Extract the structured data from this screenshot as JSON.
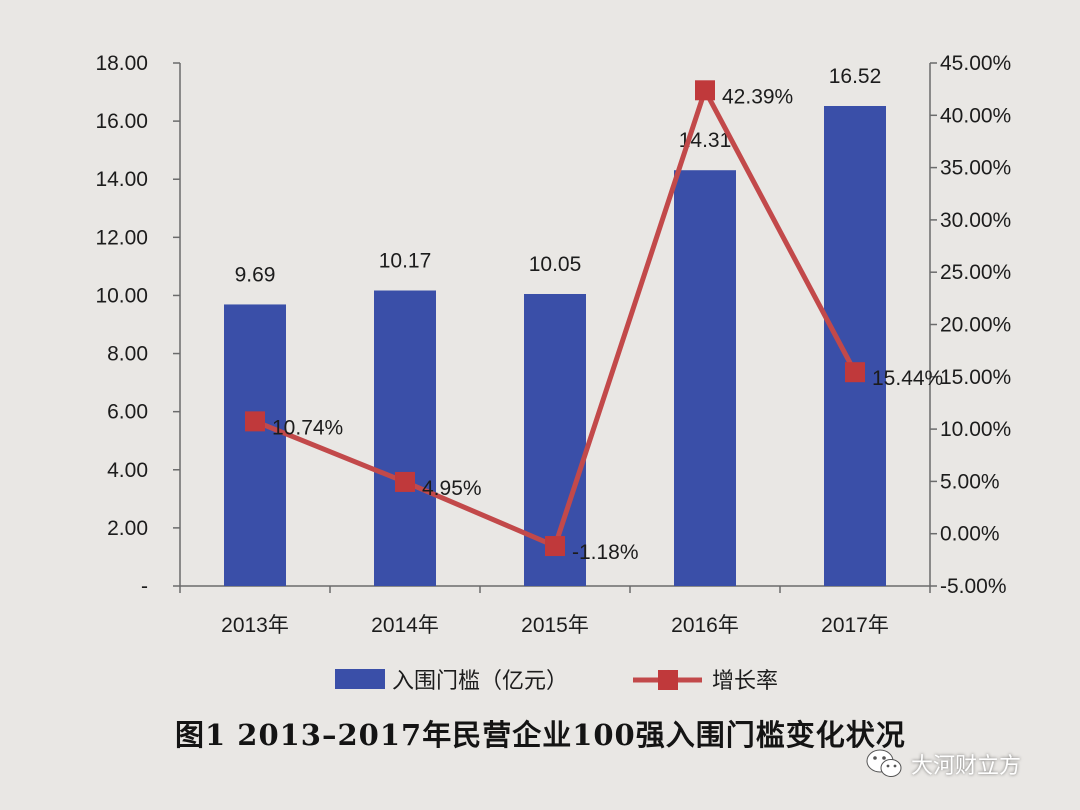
{
  "chart_data": {
    "type": "bar",
    "categories": [
      "2013年",
      "2014年",
      "2015年",
      "2016年",
      "2017年"
    ],
    "series": [
      {
        "name": "入围门槛（亿元）",
        "axis": "left",
        "kind": "bar",
        "values": [
          9.69,
          10.17,
          10.05,
          14.31,
          16.52
        ],
        "labels": [
          "9.69",
          "10.17",
          "10.05",
          "14.31",
          "16.52"
        ]
      },
      {
        "name": "增长率",
        "axis": "right",
        "kind": "line",
        "values": [
          10.74,
          4.95,
          -1.18,
          42.39,
          15.44
        ],
        "labels": [
          "10.74%",
          "4.95%",
          "-1.18%",
          "42.39%",
          "15.44%"
        ]
      }
    ],
    "y_left": {
      "ylim": [
        0,
        18
      ],
      "ticks": [
        "-",
        "2.00",
        "4.00",
        "6.00",
        "8.00",
        "10.00",
        "12.00",
        "14.00",
        "16.00",
        "18.00"
      ]
    },
    "y_right": {
      "ylim": [
        -5,
        45
      ],
      "ticks": [
        "-5.00%",
        "0.00%",
        "5.00%",
        "10.00%",
        "15.00%",
        "20.00%",
        "25.00%",
        "30.00%",
        "35.00%",
        "40.00%",
        "45.00%"
      ]
    },
    "legend_position": "bottom",
    "grid": false,
    "caption": "图1 2013–2017年民营企业100强入围门槛变化状况",
    "colors": {
      "bar": "#3a4fa8",
      "line": "#c2494a",
      "marker": "#c0393b"
    }
  },
  "watermark": {
    "text": "大河财立方",
    "icon": "wechat-icon"
  }
}
